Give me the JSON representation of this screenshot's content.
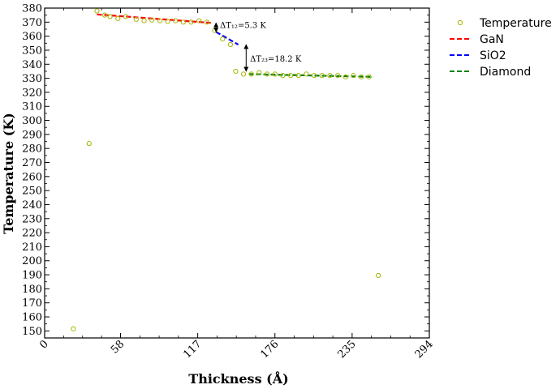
{
  "chart_data": {
    "type": "scatter",
    "title": "",
    "xlabel": "Thickness (Å)",
    "ylabel": "Temperature (K)",
    "xlim": [
      0,
      294
    ],
    "ylim": [
      145,
      380
    ],
    "xticks": [
      0,
      58,
      117,
      176,
      235,
      294
    ],
    "yticks": [
      150,
      160,
      170,
      180,
      190,
      200,
      210,
      220,
      230,
      240,
      250,
      260,
      270,
      280,
      290,
      300,
      310,
      320,
      330,
      340,
      350,
      360,
      370,
      380
    ],
    "grid": false,
    "legend_position": "top-right-outside",
    "colors": {
      "temperature": "#a8b400",
      "gan": "#ff0000",
      "sio2": "#0000ff",
      "diamond": "#008000"
    },
    "series": [
      {
        "name": "Temperature",
        "kind": "scatter",
        "marker": "hollow-circle",
        "x": [
          22,
          34,
          40,
          46,
          50,
          56,
          62,
          70,
          76,
          82,
          88,
          94,
          100,
          106,
          112,
          118,
          124,
          130,
          136,
          142,
          146,
          152,
          158,
          164,
          170,
          176,
          182,
          188,
          194,
          200,
          206,
          212,
          218,
          224,
          230,
          236,
          242,
          248,
          255
        ],
        "y": [
          151.5,
          283.5,
          378,
          375,
          374,
          372.5,
          374,
          372,
          371,
          371.5,
          371,
          370.5,
          371,
          370,
          370,
          371,
          370,
          364,
          358,
          354,
          335,
          333,
          333,
          334,
          333,
          333,
          332,
          332,
          332,
          333,
          332,
          332,
          332,
          332,
          331,
          332,
          331,
          331,
          189.5
        ]
      },
      {
        "name": "GaN",
        "kind": "fit-line",
        "style": "dashed",
        "x": [
          40,
          127
        ],
        "y": [
          375.5,
          369.5
        ]
      },
      {
        "name": "SiO2",
        "kind": "fit-line",
        "style": "dashed",
        "x": [
          131,
          148
        ],
        "y": [
          363,
          354
        ]
      },
      {
        "name": "Diamond",
        "kind": "fit-line",
        "style": "dashed",
        "x": [
          156,
          251
        ],
        "y": [
          333,
          331
        ]
      }
    ],
    "annotations": [
      {
        "text": "ΔT₁₂=5.3 K",
        "x": 134,
        "y": 368,
        "arrow_x": 131,
        "arrow_from": 369.5,
        "arrow_to": 363
      },
      {
        "text": "ΔT₂₃=18.2 K",
        "x": 157,
        "y": 344,
        "arrow_x": 154,
        "arrow_from": 354,
        "arrow_to": 335
      }
    ]
  }
}
